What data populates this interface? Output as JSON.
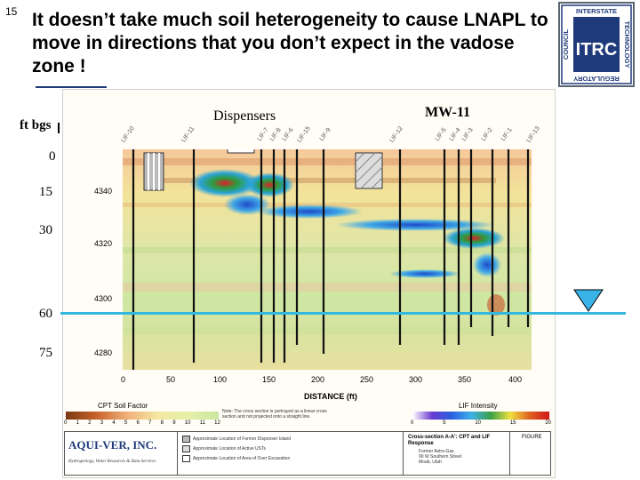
{
  "slide": {
    "number": "15",
    "title": "It doesn’t take much soil heterogeneity to cause LNAPL to move in directions that you don’t expect in the vadose zone !"
  },
  "logo": {
    "top_text": "INTERSTATE",
    "left_text": "COUNCIL",
    "right_text": "TECHNOLOGY",
    "bottom_text": "REGULATORY",
    "mark": "ITRC",
    "color": "#1f3a7a"
  },
  "figure": {
    "depth_header": "ft bgs",
    "depth_labels": [
      "0",
      "15",
      "30",
      "60",
      "75"
    ],
    "dispensers_label": "Dispensers",
    "mw_label": "MW-11",
    "well_labels": [
      "LIF-10",
      "LIF-11",
      "LIF-7",
      "LIF-8",
      "LIF-6",
      "LIF-15",
      "LIF-9",
      "LIF-12",
      "LIF-5",
      "LIF-4",
      "LIF-3",
      "LIF-2",
      "LIF-1",
      "LIF-13"
    ],
    "y_ticks": [
      "4340",
      "4320",
      "4300",
      "4280"
    ],
    "x_ticks": [
      "0",
      "50",
      "100",
      "150",
      "200",
      "250",
      "300",
      "350",
      "400"
    ],
    "x_axis_title": "DISTANCE (ft)",
    "legend": {
      "cpt_title": "CPT Soil Factor",
      "cpt_ticks": [
        "0",
        "1",
        "2",
        "3",
        "4",
        "5",
        "6",
        "7",
        "8",
        "9",
        "10",
        "11",
        "12"
      ],
      "lif_title": "LIF Intensity",
      "lif_ticks": [
        "0",
        "5",
        "10",
        "15",
        "20"
      ],
      "note": "Note: The cross section is portrayed as a linear cross section and not projected onto a straight line.",
      "company": "AQUI-VER, INC.",
      "company_tagline": "Hydrogeology, Water Resources & Data Services",
      "legend_items": [
        "Approximate Location of Former Dispenser Island",
        "Approximate Location of Active USTs",
        "Approximate Location of Area of Over Excavation"
      ],
      "figure_label": "FIGURE",
      "section_title": "Cross-section A-A': CPT and LIF Response",
      "site_lines": [
        "Former Astro-Gas",
        "90 W Southern Street",
        "Moab, Utah"
      ]
    },
    "colors": {
      "water_line": "#35b8e0",
      "marker_fill": "#3ab4e8"
    }
  }
}
